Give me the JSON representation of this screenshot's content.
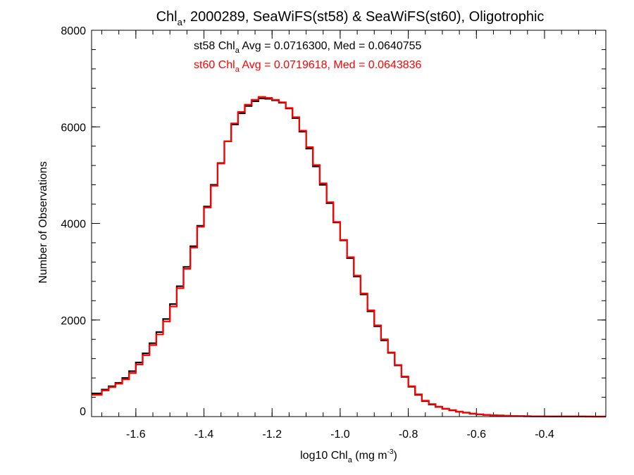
{
  "chart_data": {
    "type": "line",
    "title": {
      "prefix": "Chl",
      "sub": "a",
      "suffix": ", 2000289, SeaWiFS(st58) & SeaWiFS(st60), Oligotrophic"
    },
    "xlabel": {
      "prefix": "log10 Chl",
      "sub": "a",
      "mid": " (mg m",
      "sup": "-3",
      "suffix": ")"
    },
    "ylabel": "Number of Observations",
    "xlim": [
      -1.73,
      -0.22
    ],
    "ylim": [
      0,
      8000
    ],
    "x_ticks": [
      -1.6,
      -1.4,
      -1.2,
      -1.0,
      -0.8,
      -0.6,
      -0.4
    ],
    "x_tick_labels": [
      "-1.6",
      "-1.4",
      "-1.2",
      "-1.0",
      "-0.8",
      "-0.6",
      "-0.4"
    ],
    "y_ticks": [
      0,
      2000,
      4000,
      6000,
      8000
    ],
    "y_tick_labels": [
      "0",
      "2000",
      "4000",
      "6000",
      "8000"
    ],
    "grid": false,
    "annotations": [
      {
        "prefix": "st58 Chl",
        "sub": "a",
        "suffix": " Avg = 0.0716300, Med = 0.0640755",
        "color": "#000000"
      },
      {
        "prefix": "st60 Chl",
        "sub": "a",
        "suffix": " Avg = 0.0719618, Med = 0.0643836",
        "color": "#ff0000"
      }
    ],
    "series": [
      {
        "color": "#000000",
        "x": [
          -1.73,
          -1.7,
          -1.68,
          -1.66,
          -1.64,
          -1.62,
          -1.6,
          -1.58,
          -1.56,
          -1.54,
          -1.52,
          -1.5,
          -1.48,
          -1.46,
          -1.44,
          -1.42,
          -1.4,
          -1.38,
          -1.36,
          -1.34,
          -1.32,
          -1.3,
          -1.28,
          -1.26,
          -1.24,
          -1.22,
          -1.2,
          -1.18,
          -1.16,
          -1.14,
          -1.12,
          -1.1,
          -1.08,
          -1.06,
          -1.04,
          -1.02,
          -1.0,
          -0.98,
          -0.96,
          -0.94,
          -0.92,
          -0.9,
          -0.88,
          -0.86,
          -0.84,
          -0.82,
          -0.8,
          -0.78,
          -0.76,
          -0.74,
          -0.72,
          -0.7,
          -0.68,
          -0.66,
          -0.64,
          -0.62,
          -0.6,
          -0.58,
          -0.56,
          -0.54,
          -0.52,
          -0.5,
          -0.48,
          -0.46,
          -0.44,
          -0.42,
          -0.4,
          -0.38,
          -0.36,
          -0.34,
          -0.32,
          -0.3,
          -0.28,
          -0.26,
          -0.24,
          -0.22
        ],
        "y": [
          480,
          560,
          630,
          700,
          800,
          940,
          1120,
          1310,
          1520,
          1750,
          2020,
          2330,
          2700,
          3100,
          3530,
          3950,
          4350,
          4800,
          5250,
          5700,
          6050,
          6280,
          6430,
          6530,
          6590,
          6580,
          6550,
          6500,
          6380,
          6180,
          5900,
          5550,
          5180,
          4800,
          4420,
          4020,
          3650,
          3280,
          2900,
          2530,
          2180,
          1870,
          1580,
          1320,
          1060,
          820,
          620,
          450,
          320,
          250,
          200,
          160,
          130,
          100,
          80,
          60,
          45,
          35,
          28,
          22,
          16,
          12,
          9,
          7,
          5,
          4,
          3,
          2,
          2,
          1,
          1,
          1,
          0,
          0,
          0,
          0
        ]
      },
      {
        "color": "#ff0000",
        "x": [
          -1.73,
          -1.7,
          -1.68,
          -1.66,
          -1.64,
          -1.62,
          -1.6,
          -1.58,
          -1.56,
          -1.54,
          -1.52,
          -1.5,
          -1.48,
          -1.46,
          -1.44,
          -1.42,
          -1.4,
          -1.38,
          -1.36,
          -1.34,
          -1.32,
          -1.3,
          -1.28,
          -1.26,
          -1.24,
          -1.22,
          -1.2,
          -1.18,
          -1.16,
          -1.14,
          -1.12,
          -1.1,
          -1.08,
          -1.06,
          -1.04,
          -1.02,
          -1.0,
          -0.98,
          -0.96,
          -0.94,
          -0.92,
          -0.9,
          -0.88,
          -0.86,
          -0.84,
          -0.82,
          -0.8,
          -0.78,
          -0.76,
          -0.74,
          -0.72,
          -0.7,
          -0.68,
          -0.66,
          -0.64,
          -0.62,
          -0.6,
          -0.58,
          -0.56,
          -0.54,
          -0.52,
          -0.5,
          -0.48,
          -0.46,
          -0.44,
          -0.42,
          -0.4,
          -0.38,
          -0.36,
          -0.34,
          -0.32,
          -0.3,
          -0.28,
          -0.26,
          -0.24,
          -0.22
        ],
        "y": [
          450,
          540,
          610,
          680,
          770,
          900,
          1080,
          1270,
          1480,
          1700,
          1970,
          2280,
          2660,
          3060,
          3500,
          3930,
          4330,
          4780,
          5240,
          5700,
          6070,
          6310,
          6460,
          6560,
          6620,
          6600,
          6560,
          6510,
          6390,
          6200,
          5920,
          5580,
          5210,
          4830,
          4440,
          4030,
          3660,
          3300,
          2920,
          2550,
          2200,
          1890,
          1600,
          1330,
          1070,
          830,
          630,
          460,
          330,
          260,
          205,
          165,
          135,
          105,
          82,
          62,
          47,
          36,
          29,
          23,
          17,
          13,
          10,
          8,
          6,
          4,
          3,
          3,
          2,
          2,
          1,
          1,
          1,
          0,
          0,
          0
        ]
      }
    ]
  }
}
